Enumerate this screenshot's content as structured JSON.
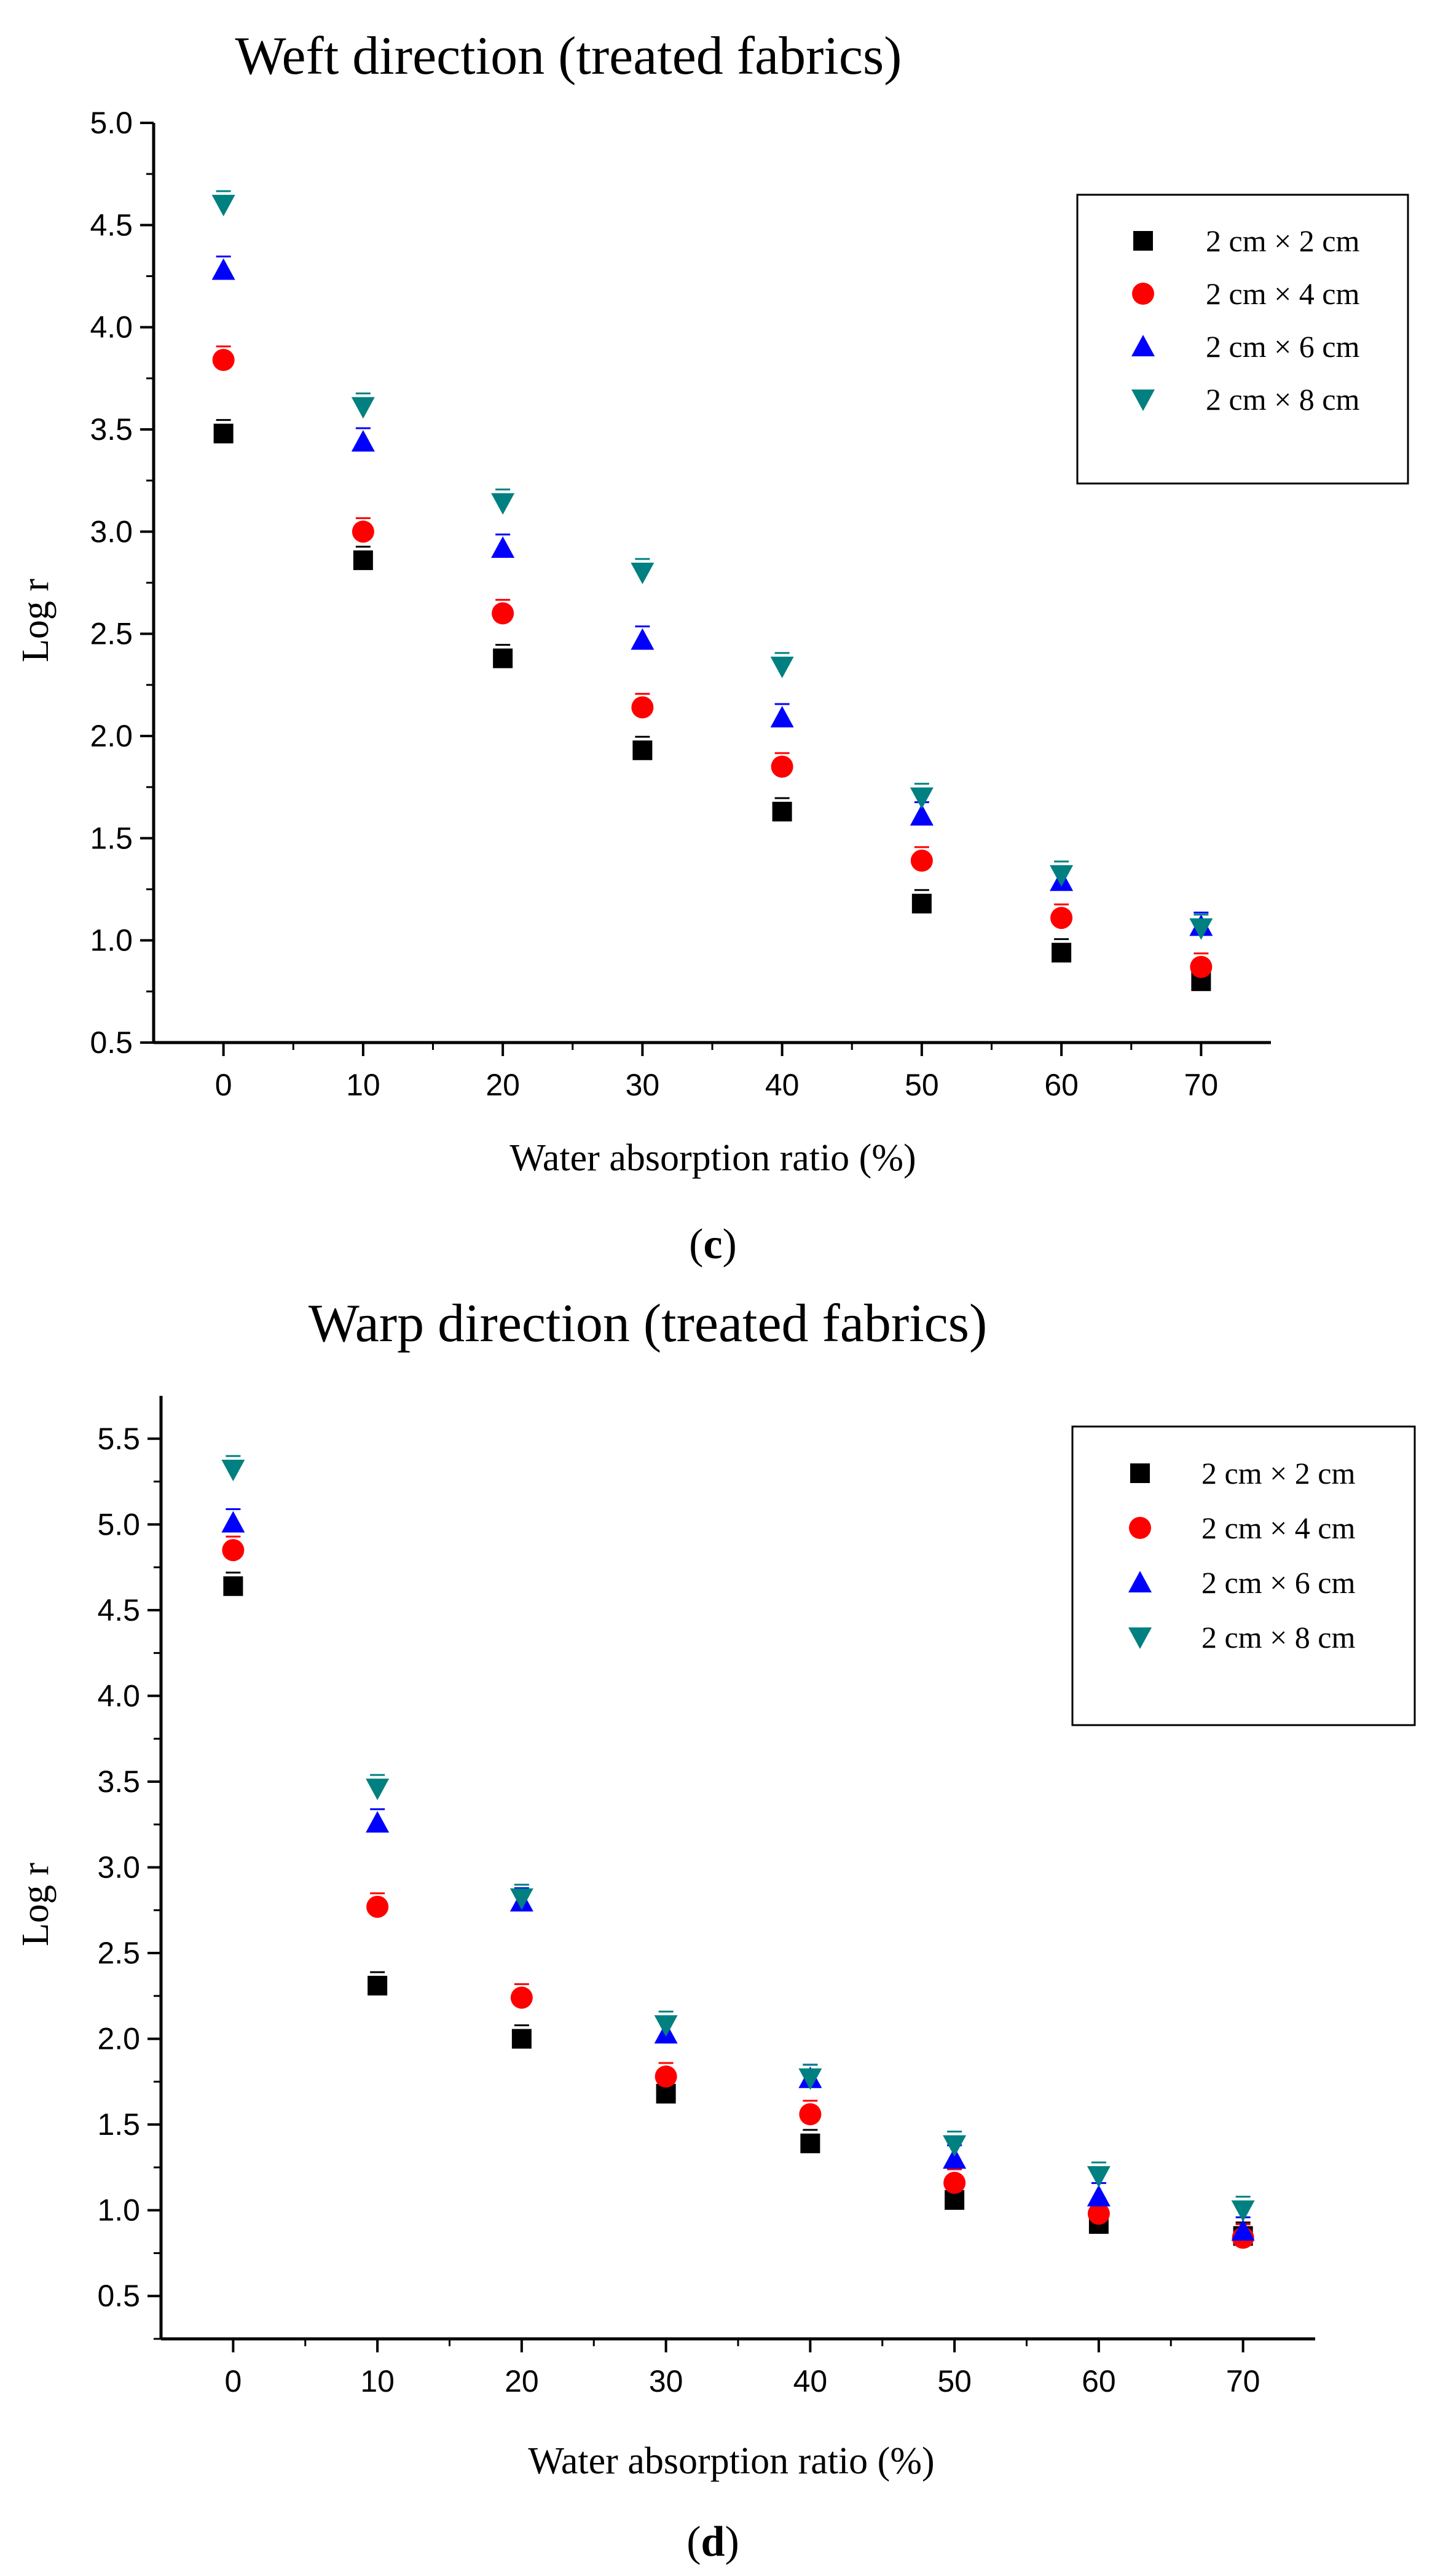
{
  "chart_data": [
    {
      "type": "scatter",
      "panel_label": {
        "open": "(",
        "letter": "c",
        "close": ")"
      },
      "title": "Weft direction (treated fabrics)",
      "xlabel": "Water absorption ratio (%)",
      "ylabel": "Log r",
      "xlim": [
        -5,
        75
      ],
      "ylim": [
        0.5,
        5.0
      ],
      "xticks": [
        0,
        10,
        20,
        30,
        40,
        50,
        60,
        70
      ],
      "yticks": [
        0.5,
        1.0,
        1.5,
        2.0,
        2.5,
        3.0,
        3.5,
        4.0,
        4.5,
        5.0
      ],
      "ytick_labels": [
        "0.5",
        "1.0",
        "1.5",
        "2.0",
        "2.5",
        "3.0",
        "3.5",
        "4.0",
        "4.5",
        "5.0"
      ],
      "grid": false,
      "legend_position": "top-right",
      "x": [
        0,
        10,
        20,
        30,
        40,
        50,
        60,
        70
      ],
      "series": [
        {
          "name": "2 cm × 2 cm",
          "marker": "square",
          "color": "#000000",
          "values": [
            3.48,
            2.86,
            2.38,
            1.93,
            1.63,
            1.18,
            0.94,
            0.8
          ]
        },
        {
          "name": "2 cm × 4 cm",
          "marker": "circle",
          "color": "#ff0000",
          "values": [
            3.84,
            3.0,
            2.6,
            2.14,
            1.85,
            1.39,
            1.11,
            0.87
          ]
        },
        {
          "name": "2 cm × 6 cm",
          "marker": "triangle-up",
          "color": "#0000ff",
          "values": [
            4.28,
            3.44,
            2.92,
            2.47,
            2.09,
            1.61,
            1.29,
            1.07
          ]
        },
        {
          "name": "2 cm × 8 cm",
          "marker": "triangle-down",
          "color": "#008080",
          "values": [
            4.6,
            3.61,
            3.14,
            2.8,
            2.34,
            1.7,
            1.32,
            1.06
          ]
        }
      ]
    },
    {
      "type": "scatter",
      "panel_label": {
        "open": "(",
        "letter": "d",
        "close": ")"
      },
      "title": "Warp direction (treated fabrics)",
      "xlabel": "Water absorption ratio (%)",
      "ylabel": "Log r",
      "xlim": [
        -5,
        75
      ],
      "ylim": [
        0.25,
        5.75
      ],
      "xticks": [
        0,
        10,
        20,
        30,
        40,
        50,
        60,
        70
      ],
      "yticks": [
        0.5,
        1.0,
        1.5,
        2.0,
        2.5,
        3.0,
        3.5,
        4.0,
        4.5,
        5.0,
        5.5
      ],
      "ytick_labels": [
        "0.5",
        "1.0",
        "1.5",
        "2.0",
        "2.5",
        "3.0",
        "3.5",
        "4.0",
        "4.5",
        "5.0",
        "5.5"
      ],
      "grid": false,
      "legend_position": "top-right",
      "x": [
        0,
        10,
        20,
        30,
        40,
        50,
        60,
        70
      ],
      "series": [
        {
          "name": "2 cm × 2 cm",
          "marker": "square",
          "color": "#000000",
          "values": [
            4.64,
            2.31,
            2.0,
            1.68,
            1.39,
            1.06,
            0.92,
            0.85
          ]
        },
        {
          "name": "2 cm × 4 cm",
          "marker": "circle",
          "color": "#ff0000",
          "values": [
            4.85,
            2.77,
            2.24,
            1.78,
            1.56,
            1.16,
            0.98,
            0.84
          ]
        },
        {
          "name": "2 cm × 6 cm",
          "marker": "triangle-up",
          "color": "#0000ff",
          "values": [
            5.01,
            3.26,
            2.8,
            2.03,
            1.77,
            1.3,
            1.08,
            0.88
          ]
        },
        {
          "name": "2 cm × 8 cm",
          "marker": "triangle-down",
          "color": "#008080",
          "values": [
            5.32,
            3.46,
            2.82,
            2.08,
            1.77,
            1.38,
            1.2,
            1.0
          ]
        }
      ]
    }
  ]
}
